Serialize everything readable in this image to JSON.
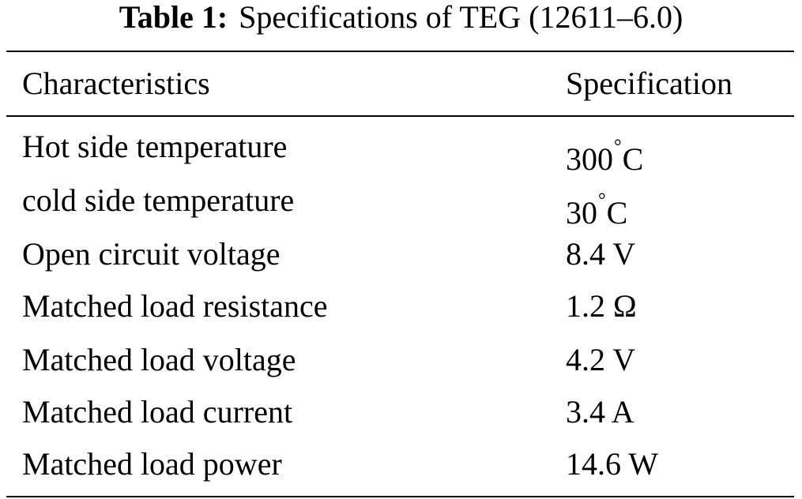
{
  "caption": {
    "label": "Table 1:",
    "text": "Specifications of TEG (12611–6.0)"
  },
  "headers": {
    "characteristics": "Characteristics",
    "specification": "Specification"
  },
  "rows": [
    {
      "characteristic": "Hot side temperature",
      "value_num": "300",
      "value_unit": "C",
      "degree": "°"
    },
    {
      "characteristic": "cold side temperature",
      "value_num": "30",
      "value_unit": "C",
      "degree": "°"
    },
    {
      "characteristic": "Open circuit voltage",
      "value": "8.4 V"
    },
    {
      "characteristic": "Matched load resistance",
      "value": "1.2 Ω"
    },
    {
      "characteristic": "Matched load voltage",
      "value": "4.2 V"
    },
    {
      "characteristic": "Matched load current",
      "value": "3.4 A"
    },
    {
      "characteristic": "Matched load power",
      "value": "14.6 W"
    }
  ]
}
